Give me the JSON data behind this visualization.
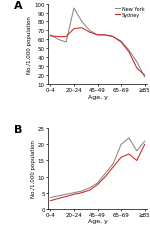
{
  "x_tick_labels": [
    "0–4",
    "20–24",
    "45–49",
    "65–69",
    "≥85"
  ],
  "panel_A": {
    "new_york": [
      65,
      60,
      57,
      95,
      80,
      70,
      65,
      65,
      63,
      58,
      48,
      35,
      18
    ],
    "sydney": [
      64,
      63,
      63,
      72,
      73,
      68,
      65,
      65,
      63,
      57,
      46,
      28,
      20
    ]
  },
  "panel_B": {
    "new_york": [
      3.5,
      4.0,
      4.5,
      5.0,
      5.5,
      6.5,
      8,
      11,
      14,
      20,
      22,
      18,
      21
    ],
    "sydney": [
      2.5,
      3.2,
      3.8,
      4.5,
      5.0,
      5.8,
      7.5,
      10,
      13,
      16,
      17,
      15,
      20
    ]
  },
  "color_ny": "#888888",
  "color_sydney": "#cc2222",
  "ylabel_A": "No./1,000 population",
  "ylabel_B": "No./1,000 population",
  "xlabel": "Age, y",
  "ylim_A": [
    10,
    100
  ],
  "ylim_B": [
    0,
    25
  ],
  "yticks_A": [
    10,
    20,
    30,
    40,
    50,
    60,
    70,
    80,
    90,
    100
  ],
  "yticks_B": [
    0,
    5,
    10,
    15,
    20,
    25
  ],
  "legend_labels": [
    "New York",
    "Sydney"
  ],
  "panel_labels": [
    "A",
    "B"
  ]
}
